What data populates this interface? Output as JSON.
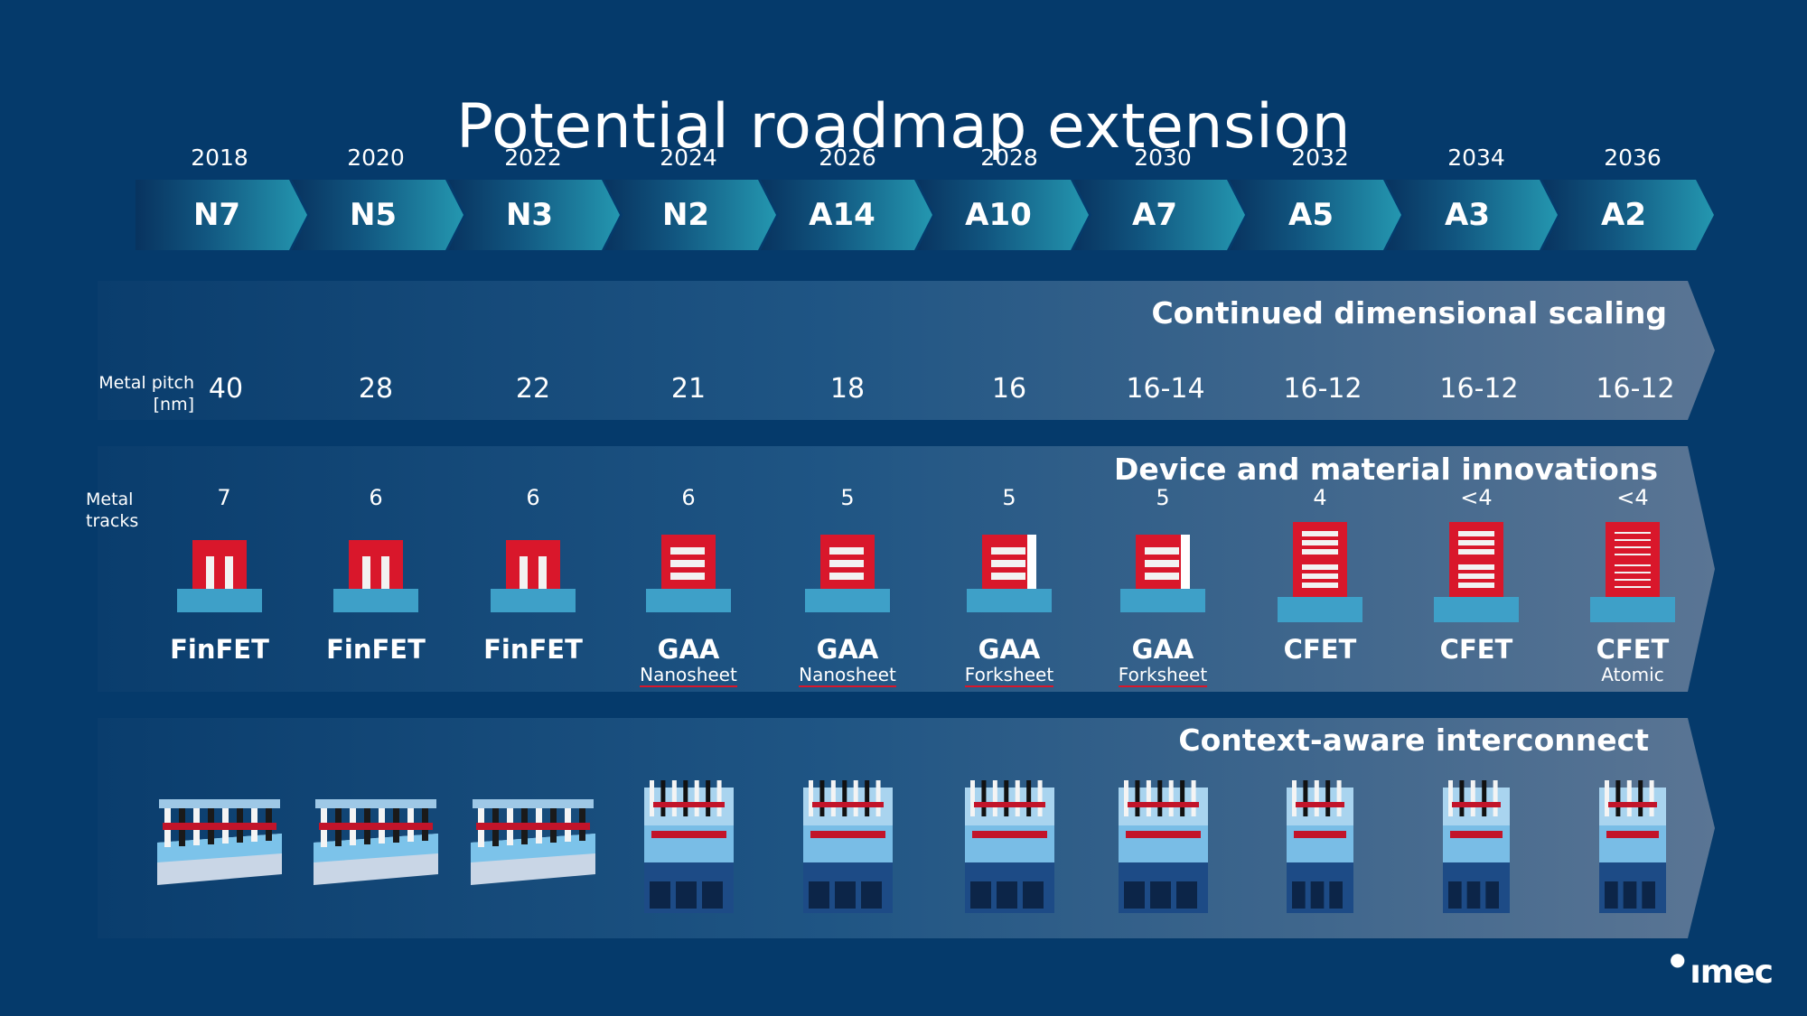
{
  "title": "Potential roadmap extension",
  "nodes": [
    {
      "year": "2018",
      "node": "N7"
    },
    {
      "year": "2020",
      "node": "N5"
    },
    {
      "year": "2022",
      "node": "N3"
    },
    {
      "year": "2024",
      "node": "N2"
    },
    {
      "year": "2026",
      "node": "A14"
    },
    {
      "year": "2028",
      "node": "A10"
    },
    {
      "year": "2030",
      "node": "A7"
    },
    {
      "year": "2032",
      "node": "A5"
    },
    {
      "year": "2034",
      "node": "A3"
    },
    {
      "year": "2036",
      "node": "A2"
    }
  ],
  "scaling": {
    "title": "Continued dimensional scaling",
    "label_line1": "Metal pitch",
    "label_line2": "[nm]",
    "values": [
      "40",
      "28",
      "22",
      "21",
      "18",
      "16",
      "16-14",
      "16-12",
      "16-12",
      "16-12"
    ]
  },
  "devices": {
    "title": "Device and material innovations",
    "tracks_label": "Metal tracks",
    "tracks": [
      "7",
      "6",
      "6",
      "6",
      "5",
      "5",
      "5",
      "4",
      "<4",
      "<4"
    ],
    "items": [
      {
        "name": "FinFET",
        "sub": "",
        "icon": "finfet-icon"
      },
      {
        "name": "FinFET",
        "sub": "",
        "icon": "finfet-icon"
      },
      {
        "name": "FinFET",
        "sub": "",
        "icon": "finfet-icon"
      },
      {
        "name": "GAA",
        "sub": "Nanosheet",
        "icon": "nanosheet-icon"
      },
      {
        "name": "GAA",
        "sub": "Nanosheet",
        "icon": "nanosheet-icon"
      },
      {
        "name": "GAA",
        "sub": "Forksheet",
        "icon": "forksheet-icon"
      },
      {
        "name": "GAA",
        "sub": "Forksheet",
        "icon": "forksheet-icon"
      },
      {
        "name": "CFET",
        "sub": "",
        "icon": "cfet-icon"
      },
      {
        "name": "CFET",
        "sub": "",
        "icon": "cfet-icon"
      },
      {
        "name": "CFET",
        "sub": "Atomic",
        "icon": "cfet-atomic-icon"
      }
    ]
  },
  "interconnect": {
    "title": "Context-aware interconnect"
  },
  "logo": "ımec",
  "colors": {
    "background": "#053a6b",
    "device_red": "#d9172b",
    "substrate_blue": "#3ea0c8"
  }
}
